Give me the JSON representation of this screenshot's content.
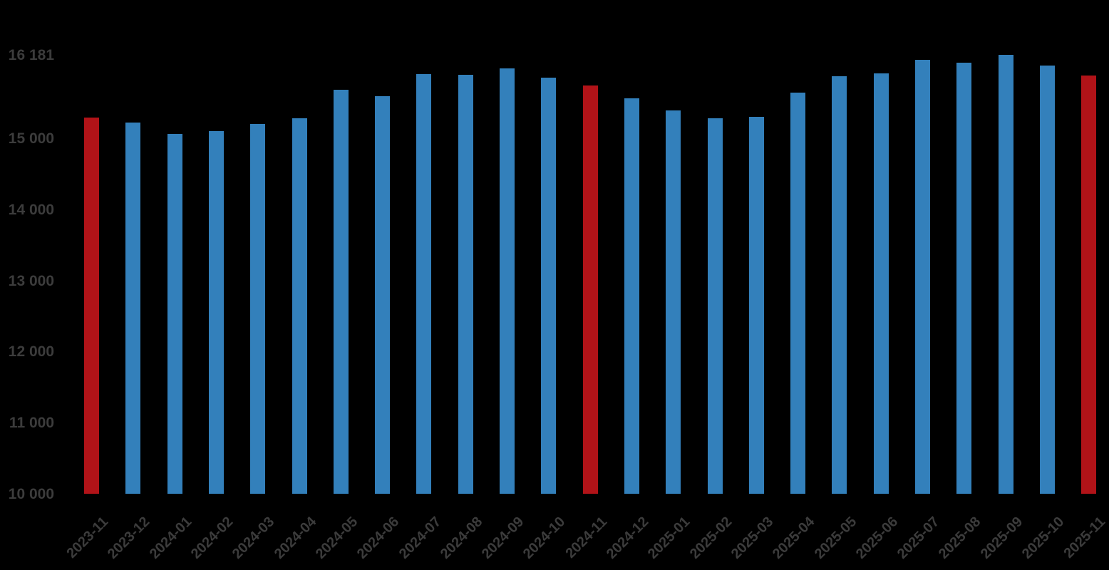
{
  "chart_data": {
    "type": "bar",
    "title": "",
    "xlabel": "",
    "ylabel": "",
    "grid": false,
    "legend": false,
    "background_color": "#000000",
    "label_color": "#3c3c3c",
    "bar_color_default": "#3380bb",
    "bar_color_highlight": "#b11318",
    "highlight_note": "November months highlighted",
    "ylim": [
      10000,
      16181
    ],
    "yticks": [
      10000,
      11000,
      12000,
      13000,
      14000,
      15000
    ],
    "ytick_labels": [
      "10 000",
      "11 000",
      "12 000",
      "13 000",
      "14 000",
      "15 000"
    ],
    "ymax_value": 16181,
    "ymax_label": "16 181",
    "categories": [
      "2023-11",
      "2023-12",
      "2024-01",
      "2024-02",
      "2024-03",
      "2024-04",
      "2024-05",
      "2024-06",
      "2024-07",
      "2024-08",
      "2024-09",
      "2024-10",
      "2024-11",
      "2024-12",
      "2025-01",
      "2025-02",
      "2025-03",
      "2025-04",
      "2025-05",
      "2025-06",
      "2025-07",
      "2025-08",
      "2025-09",
      "2025-10",
      "2025-11"
    ],
    "values": [
      15300,
      15230,
      15070,
      15110,
      15210,
      15290,
      15690,
      15600,
      15910,
      15900,
      15990,
      15860,
      15750,
      15570,
      15400,
      15290,
      15310,
      15650,
      15880,
      15920,
      16110,
      16070,
      16181,
      16030,
      15890
    ],
    "highlight_indices": [
      0,
      12,
      24
    ]
  }
}
